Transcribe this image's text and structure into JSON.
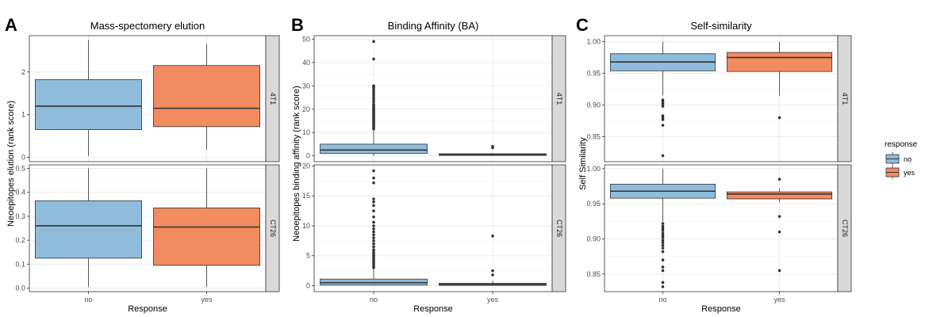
{
  "chart_data": [
    {
      "type": "box",
      "panel_letter": "A",
      "title": "Mass-spectomery elution",
      "xlabel": "Response",
      "ylabel": "Neoepitopes elution (rank score)",
      "categories": [
        "no",
        "yes"
      ],
      "facets": [
        {
          "strip": "4T1",
          "ylim": [
            -0.1,
            2.85
          ],
          "yticks": [
            0,
            1,
            2
          ],
          "yticklabels": [
            "0",
            "1",
            "2"
          ],
          "boxes": [
            {
              "category": "no",
              "min": 0.03,
              "q1": 0.65,
              "median": 1.2,
              "q3": 1.82,
              "max": 2.75,
              "outliers": []
            },
            {
              "category": "yes",
              "min": 0.18,
              "q1": 0.72,
              "median": 1.15,
              "q3": 2.15,
              "max": 2.65,
              "outliers": []
            }
          ]
        },
        {
          "strip": "CT26",
          "ylim": [
            -0.015,
            0.515
          ],
          "yticks": [
            0,
            0.1,
            0.2,
            0.3,
            0.4,
            0.5
          ],
          "yticklabels": [
            "0.0",
            "0.1",
            "0.2",
            "0.3",
            "0.4",
            "0.5"
          ],
          "boxes": [
            {
              "category": "no",
              "min": 0.005,
              "q1": 0.125,
              "median": 0.26,
              "q3": 0.365,
              "max": 0.5,
              "outliers": []
            },
            {
              "category": "yes",
              "min": 0.005,
              "q1": 0.095,
              "median": 0.255,
              "q3": 0.335,
              "max": 0.5,
              "outliers": []
            }
          ]
        }
      ]
    },
    {
      "type": "box",
      "panel_letter": "B",
      "title": "Binding Affinity (BA)",
      "xlabel": "Response",
      "ylabel": "Neoepitopes binding affinity (rank score)",
      "categories": [
        "no",
        "yes"
      ],
      "facets": [
        {
          "strip": "4T1",
          "ylim": [
            -2.5,
            51.5
          ],
          "yticks": [
            0,
            10,
            20,
            30,
            40,
            50
          ],
          "yticklabels": [
            "0",
            "10",
            "20",
            "30",
            "40",
            "50"
          ],
          "boxes": [
            {
              "category": "no",
              "min": 0,
              "q1": 1,
              "median": 2.5,
              "q3": 5,
              "max": 11,
              "outliers": [
                11.5,
                12,
                12.5,
                13,
                13.5,
                14,
                14.5,
                15,
                15.5,
                16,
                16.5,
                17,
                17.5,
                18,
                18.5,
                19,
                19.5,
                20,
                20.5,
                21,
                21.5,
                22,
                23,
                24,
                25,
                26,
                27,
                28,
                29,
                29.5,
                30,
                41.5,
                49
              ]
            },
            {
              "category": "yes",
              "min": 0,
              "q1": 0.2,
              "median": 0.5,
              "q3": 0.9,
              "max": 1.2,
              "outliers": [
                3.5,
                4
              ]
            }
          ]
        },
        {
          "strip": "CT26",
          "ylim": [
            -1,
            20.2
          ],
          "yticks": [
            0,
            5,
            10,
            15,
            20
          ],
          "yticklabels": [
            "0",
            "5",
            "10",
            "15",
            "20"
          ],
          "boxes": [
            {
              "category": "no",
              "min": 0,
              "q1": 0.1,
              "median": 0.5,
              "q3": 1.1,
              "max": 2.8,
              "outliers": [
                3,
                3.3,
                3.6,
                3.9,
                4.2,
                4.5,
                4.8,
                5.1,
                5.4,
                5.7,
                6,
                6.5,
                7,
                7.5,
                8,
                8.5,
                9,
                9.5,
                10,
                10.6,
                11.5,
                12.5,
                13.4,
                14,
                14.5,
                17.2,
                18,
                19.2
              ]
            },
            {
              "category": "yes",
              "min": 0,
              "q1": 0.05,
              "median": 0.2,
              "q3": 0.4,
              "max": 0.8,
              "outliers": [
                1.8,
                2.5,
                8.3
              ]
            }
          ]
        }
      ]
    },
    {
      "type": "box",
      "panel_letter": "C",
      "title": "Self-similarity",
      "xlabel": "Response",
      "ylabel": "Self Similarity",
      "categories": [
        "no",
        "yes"
      ],
      "facets": [
        {
          "strip": "4T1",
          "ylim": [
            0.8105,
            1.0095
          ],
          "yticks": [
            0.85,
            0.9,
            0.95,
            1.0
          ],
          "yticklabels": [
            "0.85",
            "0.90",
            "0.95",
            "1.00"
          ],
          "boxes": [
            {
              "category": "no",
              "min": 0.915,
              "q1": 0.954,
              "median": 0.968,
              "q3": 0.981,
              "max": 1.0,
              "outliers": [
                0.908,
                0.905,
                0.902,
                0.898,
                0.883,
                0.88,
                0.877,
                0.868,
                0.82
              ]
            },
            {
              "category": "yes",
              "min": 0.915,
              "q1": 0.953,
              "median": 0.975,
              "q3": 0.983,
              "max": 1.0,
              "outliers": [
                0.88
              ]
            }
          ]
        },
        {
          "strip": "CT26",
          "ylim": [
            0.825,
            1.0055
          ],
          "yticks": [
            0.85,
            0.9,
            0.95,
            1.0
          ],
          "yticklabels": [
            "0.85",
            "0.90",
            "0.95",
            "1.00"
          ],
          "boxes": [
            {
              "category": "no",
              "min": 0.925,
              "q1": 0.958,
              "median": 0.968,
              "q3": 0.978,
              "max": 1.0,
              "outliers": [
                0.922,
                0.918,
                0.915,
                0.912,
                0.908,
                0.905,
                0.902,
                0.898,
                0.895,
                0.891,
                0.887,
                0.882,
                0.87,
                0.86,
                0.855,
                0.838,
                0.832
              ]
            },
            {
              "category": "yes",
              "min": 0.952,
              "q1": 0.957,
              "median": 0.964,
              "q3": 0.967,
              "max": 0.972,
              "outliers": [
                0.985,
                0.932,
                0.91,
                0.855
              ]
            }
          ]
        }
      ]
    }
  ],
  "legend": {
    "title": "response",
    "placement": "right",
    "entries": [
      {
        "label": "no",
        "color": "#8fbcdb"
      },
      {
        "label": "yes",
        "color": "#f28c60"
      }
    ]
  },
  "colors": {
    "no": "#8fbcdb",
    "yes": "#f28c60",
    "strip_fill": "#d9d9d9",
    "grid_major": "#ebebeb",
    "grid_minor": "#f5f5f5",
    "point": "#333333"
  }
}
